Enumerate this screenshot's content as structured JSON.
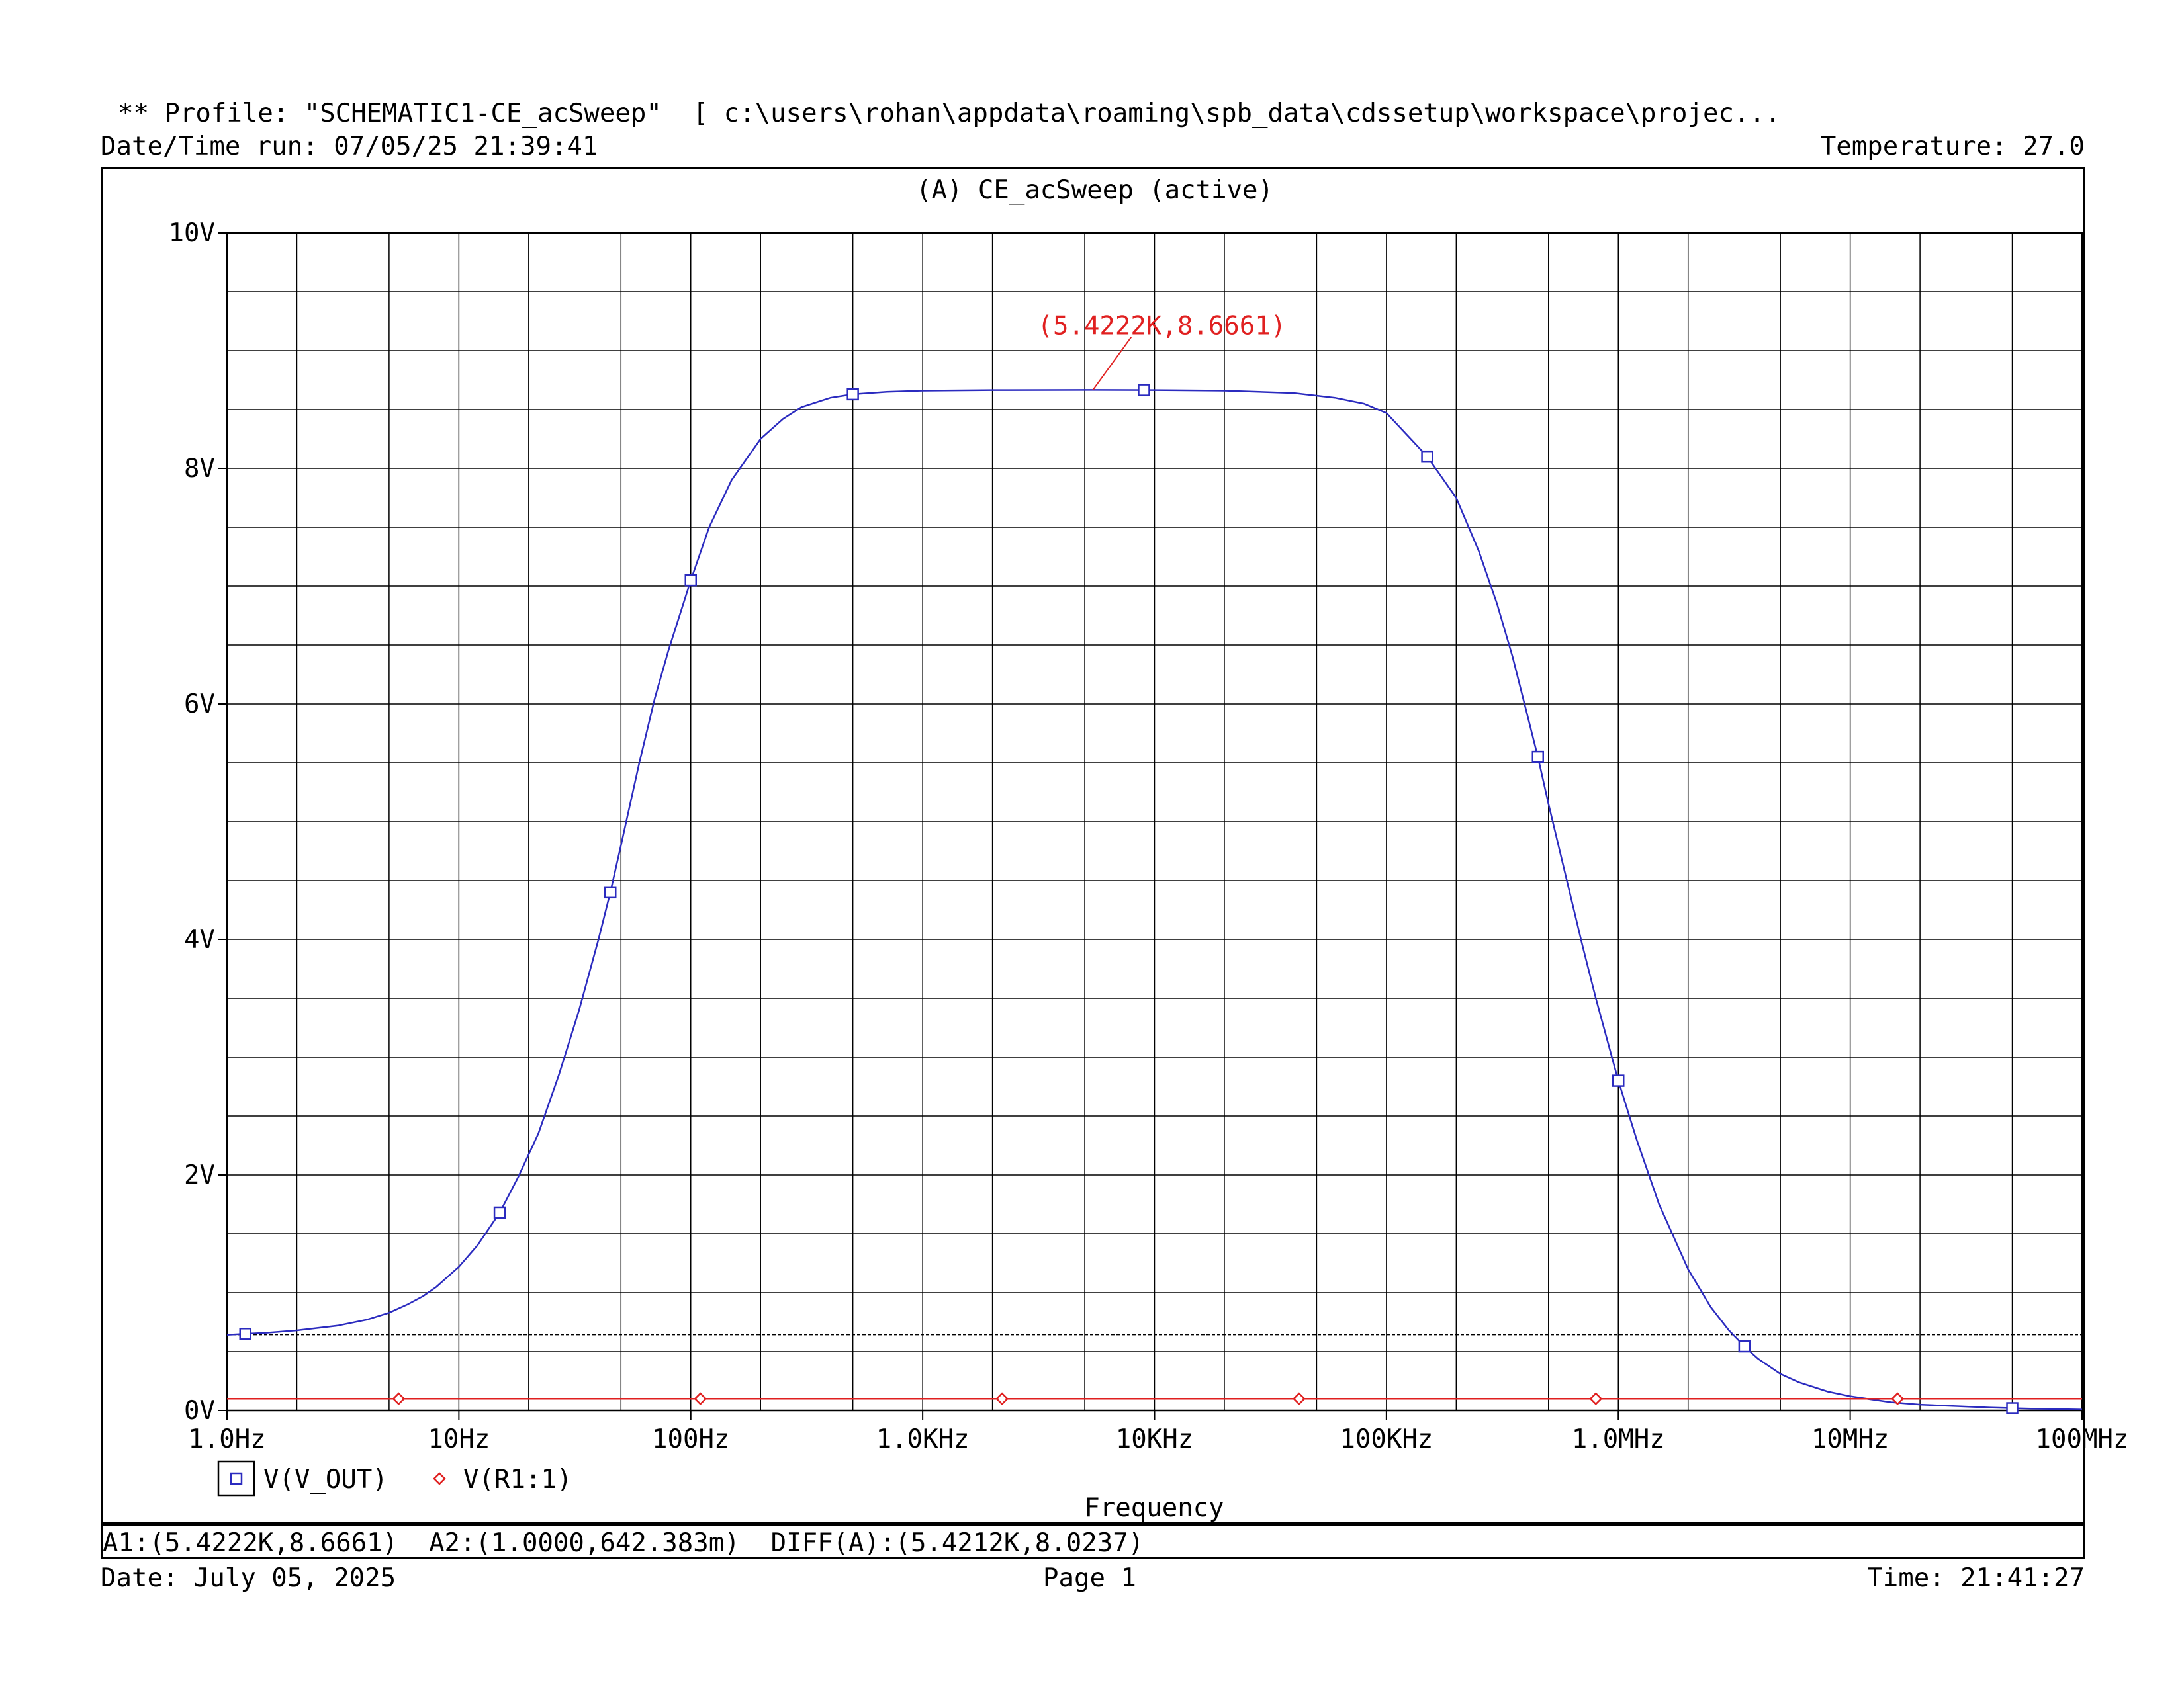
{
  "header": {
    "profile_line": "** Profile: \"SCHEMATIC1-CE_acSweep\"  [ c:\\users\\rohan\\appdata\\roaming\\spb_data\\cdssetup\\workspace\\projec...",
    "datetime_run": "Date/Time run: 07/05/25 21:39:41",
    "temperature": "Temperature: 27.0"
  },
  "footer": {
    "cursor_readout": "A1:(5.4222K,8.6661)  A2:(1.0000,642.383m)  DIFF(A):(5.4212K,8.0237)",
    "date": "Date: July 05, 2025",
    "page": "Page 1",
    "time": "Time: 21:41:27"
  },
  "colors": {
    "v_out": "#2b2bbf",
    "v_r1": "#e02020",
    "grid": "#000000"
  },
  "chart_data": {
    "type": "line",
    "title": "(A) CE_acSweep (active)",
    "xlabel": "Frequency",
    "ylabel": "",
    "x_scale": "log",
    "xlim": [
      1,
      100000000
    ],
    "ylim": [
      0,
      10
    ],
    "grid": true,
    "legend_placement": "bottom-left",
    "x_ticks": [
      {
        "value": 1,
        "label": "1.0Hz"
      },
      {
        "value": 10,
        "label": "10Hz"
      },
      {
        "value": 100,
        "label": "100Hz"
      },
      {
        "value": 1000,
        "label": "1.0KHz"
      },
      {
        "value": 10000,
        "label": "10KHz"
      },
      {
        "value": 100000,
        "label": "100KHz"
      },
      {
        "value": 1000000,
        "label": "1.0MHz"
      },
      {
        "value": 10000000,
        "label": "10MHz"
      },
      {
        "value": 100000000,
        "label": "100MHz"
      }
    ],
    "y_ticks": [
      {
        "value": 0,
        "label": "0V"
      },
      {
        "value": 2,
        "label": "2V"
      },
      {
        "value": 4,
        "label": "4V"
      },
      {
        "value": 6,
        "label": "6V"
      },
      {
        "value": 8,
        "label": "8V"
      },
      {
        "value": 10,
        "label": "10V"
      }
    ],
    "series": [
      {
        "name": "V(V_OUT)",
        "marker": "square",
        "x": [
          1,
          1.5,
          2,
          3,
          4,
          5,
          6,
          7,
          8,
          10,
          12,
          15,
          18,
          22,
          27,
          33,
          40,
          45,
          50,
          60,
          70,
          80,
          100,
          120,
          150,
          200,
          250,
          300,
          400,
          500,
          700,
          1000,
          2000,
          5422.2,
          10000,
          20000,
          40000,
          60000,
          80000,
          100000,
          150000,
          200000,
          250000,
          300000,
          350000,
          400000,
          450000,
          500000,
          600000,
          700000,
          800000,
          1000000,
          1200000,
          1500000,
          2000000,
          2500000,
          3000000,
          3600000,
          4000000,
          5000000,
          6000000,
          8000000,
          10000000,
          15000000,
          20000000,
          30000000,
          40000000,
          60000000,
          100000000
        ],
        "y": [
          0.642,
          0.66,
          0.68,
          0.72,
          0.77,
          0.83,
          0.9,
          0.97,
          1.05,
          1.22,
          1.4,
          1.68,
          1.98,
          2.35,
          2.85,
          3.4,
          4.0,
          4.4,
          4.8,
          5.5,
          6.05,
          6.45,
          7.05,
          7.5,
          7.9,
          8.25,
          8.42,
          8.52,
          8.6,
          8.63,
          8.65,
          8.66,
          8.665,
          8.6661,
          8.665,
          8.66,
          8.64,
          8.6,
          8.55,
          8.47,
          8.1,
          7.75,
          7.3,
          6.85,
          6.4,
          5.95,
          5.55,
          5.15,
          4.5,
          3.95,
          3.5,
          2.8,
          2.3,
          1.75,
          1.2,
          0.88,
          0.68,
          0.52,
          0.44,
          0.31,
          0.24,
          0.16,
          0.12,
          0.07,
          0.05,
          0.035,
          0.025,
          0.015,
          0.008
        ]
      },
      {
        "name": "V(R1:1)",
        "marker": "diamond",
        "x": [
          1,
          100000000
        ],
        "y": [
          0.1,
          0.1
        ]
      }
    ],
    "v_out_marker_x": [
      1.2,
      15,
      45,
      100,
      500,
      9000,
      150000,
      450000,
      1000000,
      3500000,
      50000000
    ],
    "v_r1_marker_x": [
      5.5,
      110,
      2200,
      42000,
      800000,
      16000000
    ],
    "reference_line": {
      "value": 0.642383
    },
    "cursor": {
      "x": 5422.2,
      "y": 8.6661,
      "label": "(5.4222K,8.6661)"
    }
  }
}
